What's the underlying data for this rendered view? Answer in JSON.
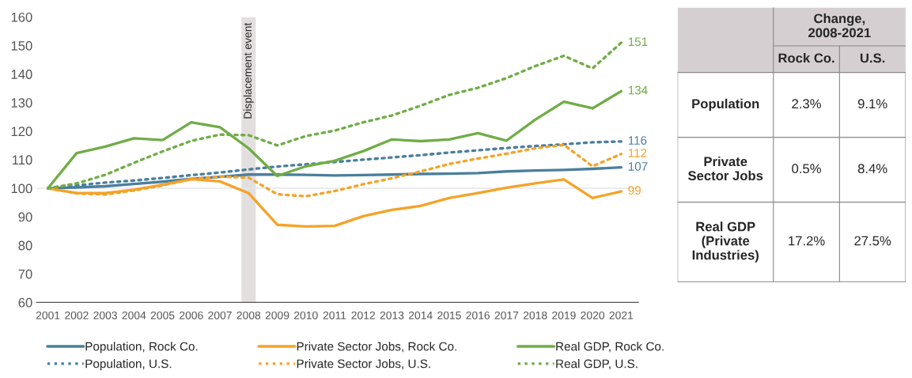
{
  "chart_data": [
    {
      "type": "line",
      "x": [
        2001,
        2002,
        2003,
        2004,
        2005,
        2006,
        2007,
        2008,
        2009,
        2010,
        2011,
        2012,
        2013,
        2014,
        2015,
        2016,
        2017,
        2018,
        2019,
        2020,
        2021
      ],
      "xlim": [
        2000.6,
        2021.6
      ],
      "xticks": [
        2001,
        2002,
        2003,
        2004,
        2005,
        2006,
        2007,
        2008,
        2009,
        2010,
        2011,
        2012,
        2013,
        2014,
        2015,
        2016,
        2017,
        2018,
        2019,
        2020,
        2021
      ],
      "ylim": [
        60,
        160
      ],
      "yticks": [
        60,
        70,
        80,
        90,
        100,
        110,
        120,
        130,
        140,
        150,
        160
      ],
      "grid": false,
      "legend": "bottom",
      "marker": "none",
      "ref_lines": [
        {
          "axis": "y",
          "value": 100,
          "color": "#e6e6e6",
          "line_style": "solid"
        }
      ],
      "bands": [
        {
          "axis": "x",
          "from": 2007.75,
          "to": 2008.25,
          "label": "Displacement event",
          "color": "#e4dfdf"
        }
      ],
      "series": [
        {
          "name": "Population, Rock Co.",
          "color": "#4a7f9e",
          "line_style": "solid",
          "values": [
            100,
            100.3,
            100.7,
            101.5,
            102.3,
            103.3,
            104,
            104.8,
            104.8,
            104.7,
            104.5,
            104.6,
            104.8,
            105,
            105.1,
            105.3,
            105.9,
            106.2,
            106.4,
            106.8,
            107.3
          ],
          "value_labels": [
            null,
            null,
            null,
            null,
            null,
            null,
            null,
            null,
            null,
            null,
            null,
            null,
            null,
            null,
            null,
            null,
            null,
            null,
            null,
            null,
            "107"
          ]
        },
        {
          "name": "Population, U.S.",
          "color": "#4a7f9e",
          "line_style": "dotted",
          "values": [
            100,
            101,
            102,
            102.7,
            103.6,
            104.6,
            105.5,
            106.6,
            107.6,
            108.4,
            109.2,
            110,
            110.8,
            111.6,
            112.5,
            113.3,
            114.1,
            114.8,
            115.4,
            116.1,
            116.4
          ],
          "value_labels": [
            null,
            null,
            null,
            null,
            null,
            null,
            null,
            null,
            null,
            null,
            null,
            null,
            null,
            null,
            null,
            null,
            null,
            null,
            null,
            null,
            "116"
          ]
        },
        {
          "name": "Private Sector Jobs, Rock Co.",
          "color": "#f4a328",
          "line_style": "solid",
          "values": [
            100,
            98.3,
            98.3,
            99.5,
            101.2,
            103.2,
            102.4,
            98.3,
            87.2,
            86.6,
            86.8,
            90.2,
            92.4,
            93.8,
            96.6,
            98.3,
            100.2,
            101.7,
            103.1,
            96.6,
            98.9
          ],
          "value_labels": [
            null,
            null,
            null,
            null,
            null,
            null,
            null,
            null,
            null,
            null,
            null,
            null,
            null,
            null,
            null,
            null,
            null,
            null,
            null,
            null,
            "99"
          ]
        },
        {
          "name": "Private Sector Jobs, U.S.",
          "color": "#f4a328",
          "line_style": "dotted",
          "values": [
            100,
            98.2,
            97.8,
            99.2,
            101,
            103.2,
            104.1,
            103.7,
            97.9,
            97.2,
            99,
            101.4,
            103.5,
            105.9,
            108.5,
            110.4,
            112.1,
            114,
            115.2,
            107.7,
            112
          ],
          "value_labels": [
            null,
            null,
            null,
            null,
            null,
            null,
            null,
            null,
            null,
            null,
            null,
            null,
            null,
            null,
            null,
            null,
            null,
            null,
            null,
            null,
            "112"
          ]
        },
        {
          "name": "Real GDP, Rock Co.",
          "color": "#70ad47",
          "line_style": "solid",
          "values": [
            100,
            112.3,
            114.6,
            117.5,
            116.9,
            123.1,
            121.4,
            114,
            104.3,
            107.7,
            109.6,
            113,
            117.1,
            116.5,
            117.1,
            119.3,
            116.7,
            124,
            130.3,
            128,
            134
          ],
          "value_labels": [
            null,
            null,
            null,
            null,
            null,
            null,
            null,
            null,
            null,
            null,
            null,
            null,
            null,
            null,
            null,
            null,
            null,
            null,
            null,
            null,
            "134"
          ]
        },
        {
          "name": "Real GDP, U.S.",
          "color": "#70ad47",
          "line_style": "dotted",
          "values": [
            100,
            101.7,
            104.7,
            108.9,
            112.9,
            116.6,
            118.8,
            118.6,
            115,
            118.3,
            120.2,
            123.1,
            125.5,
            128.9,
            132.7,
            135.2,
            138.6,
            142.8,
            146.4,
            142,
            151
          ],
          "value_labels": [
            null,
            null,
            null,
            null,
            null,
            null,
            null,
            null,
            null,
            null,
            null,
            null,
            null,
            null,
            null,
            null,
            null,
            null,
            null,
            null,
            "151"
          ]
        }
      ]
    },
    {
      "type": "other",
      "annotations": [
        "Change,\n2008-2021",
        "Rock Co.",
        "U.S.",
        "Population",
        "2.3%",
        "9.1%",
        "Private\nSector Jobs",
        "0.5%",
        "8.4%",
        "Real GDP\n(Private\nIndustries)",
        "17.2%",
        "27.5%"
      ]
    }
  ]
}
